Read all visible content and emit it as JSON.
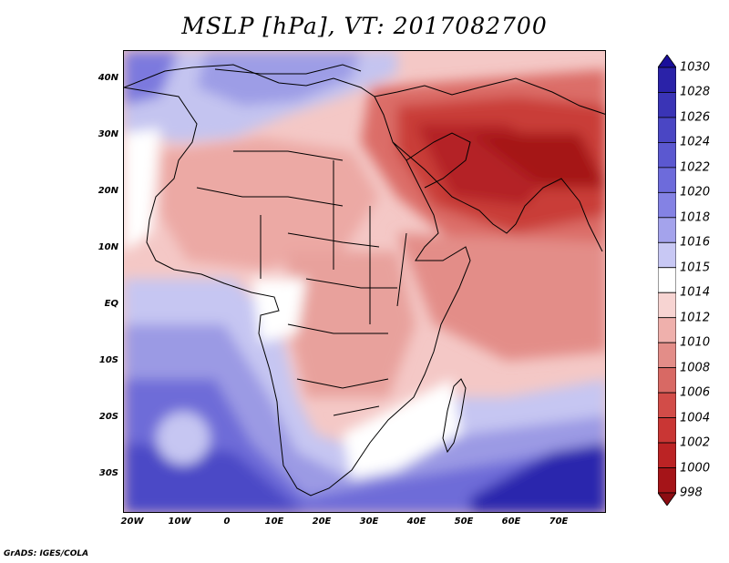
{
  "title": "MSLP [hPa], VT: 2017082700",
  "credit": "GrADS: IGES/COLA",
  "map": {
    "lat_labels": [
      "40N",
      "30N",
      "20N",
      "10N",
      "EQ",
      "10S",
      "20S",
      "30S"
    ],
    "lon_labels": [
      "20W",
      "10W",
      "0",
      "10E",
      "20E",
      "30E",
      "40E",
      "50E",
      "60E",
      "70E"
    ]
  },
  "colorbar": {
    "labels": [
      "1030",
      "1028",
      "1026",
      "1024",
      "1022",
      "1020",
      "1018",
      "1016",
      "1015",
      "1014",
      "1012",
      "1010",
      "1008",
      "1006",
      "1004",
      "1002",
      "1000",
      "998"
    ],
    "colors": [
      "#1a0f9a",
      "#2a22a8",
      "#3a34b6",
      "#4a46c4",
      "#5b58d0",
      "#6d6bdb",
      "#8482e4",
      "#a4a3ec",
      "#c8c8f4",
      "#ffffff",
      "#f7d4d2",
      "#efb0ac",
      "#e38d88",
      "#d86964",
      "#d24c48",
      "#c93634",
      "#bb2324",
      "#a51418",
      "#8c0c12"
    ]
  }
}
